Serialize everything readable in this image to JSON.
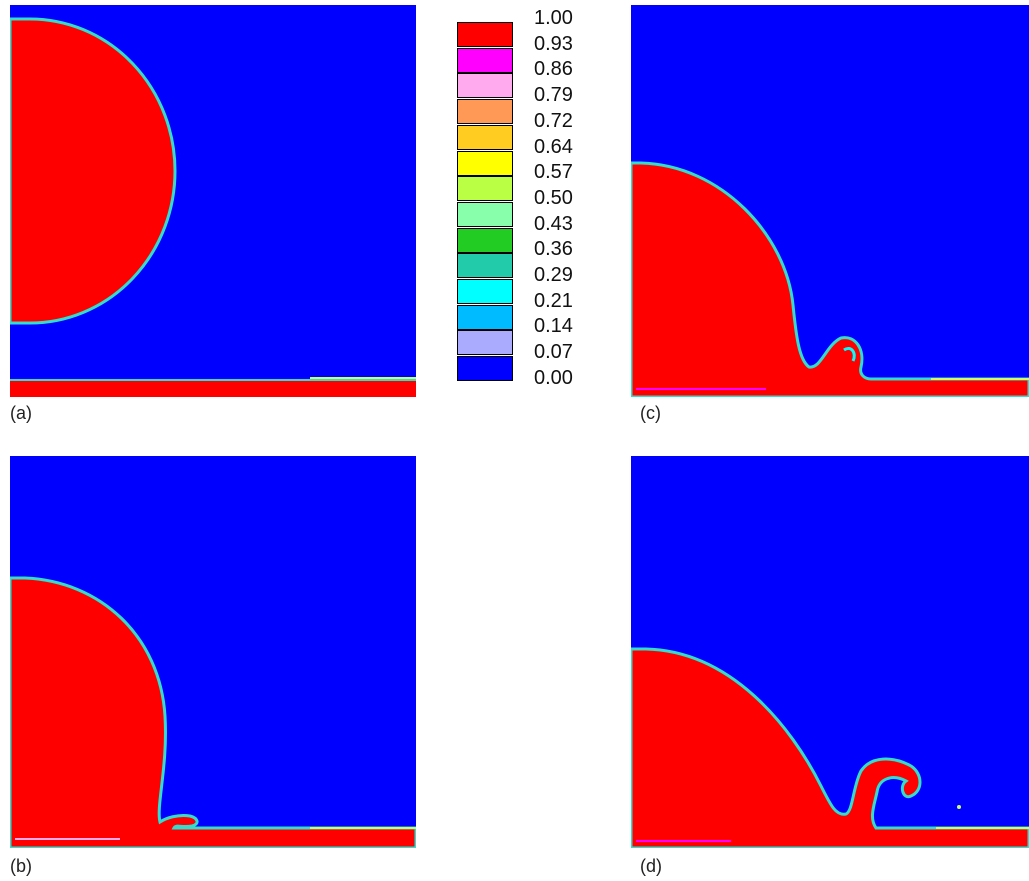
{
  "panels": [
    {
      "label": "(a)"
    },
    {
      "label": "(b)"
    },
    {
      "label": "(c)"
    },
    {
      "label": "(d)"
    }
  ],
  "legend": {
    "ticks": [
      "1.00",
      "0.93",
      "0.86",
      "0.79",
      "0.72",
      "0.64",
      "0.57",
      "0.50",
      "0.43",
      "0.36",
      "0.29",
      "0.21",
      "0.14",
      "0.07",
      "0.00"
    ],
    "colors": [
      "#ff0000",
      "#ff00ff",
      "#ffaaee",
      "#ff9955",
      "#ffcc22",
      "#ffff00",
      "#bbff44",
      "#88ffaa",
      "#22cc22",
      "#22ccaa",
      "#00ffff",
      "#00bbff",
      "#aaaaff",
      "#0000ff"
    ]
  },
  "colors": {
    "gas": "#0000ff",
    "liquid": "#ff0000",
    "interface_outer": "#33ddcc",
    "interface_inner": "#ccff66"
  }
}
